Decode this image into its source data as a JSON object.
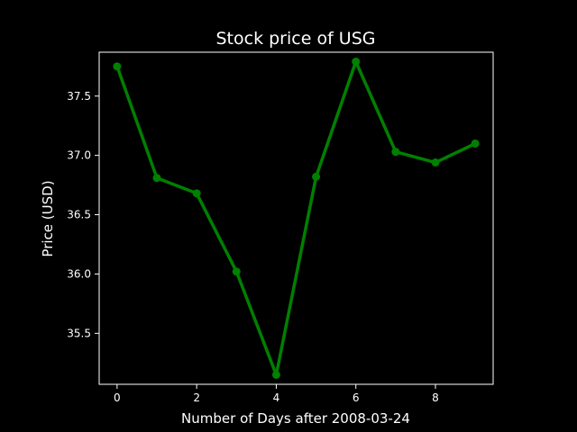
{
  "chart_data": {
    "type": "line",
    "title": "Stock price of USG",
    "xlabel": "Number of Days after 2008-03-24",
    "ylabel": "Price (USD)",
    "x": [
      0,
      1,
      2,
      3,
      4,
      5,
      6,
      7,
      8,
      9
    ],
    "series": [
      {
        "values": [
          37.75,
          36.81,
          36.68,
          36.02,
          35.15,
          36.82,
          37.79,
          37.03,
          36.94,
          37.1
        ],
        "color": "#008000",
        "marker": "circle"
      }
    ],
    "xlim": [
      -0.45,
      9.45
    ],
    "ylim": [
      35.07,
      37.87
    ],
    "xticks": [
      0,
      2,
      4,
      6,
      8
    ],
    "xtick_labels": [
      "0",
      "2",
      "4",
      "6",
      "8"
    ],
    "yticks": [
      35.5,
      36.0,
      36.5,
      37.0,
      37.5
    ],
    "ytick_labels": [
      "35.5",
      "36.0",
      "36.5",
      "37.0",
      "37.5"
    ],
    "grid": false,
    "background": "#000000",
    "text_color": "#ffffff",
    "axis_color": "#ffffff"
  }
}
